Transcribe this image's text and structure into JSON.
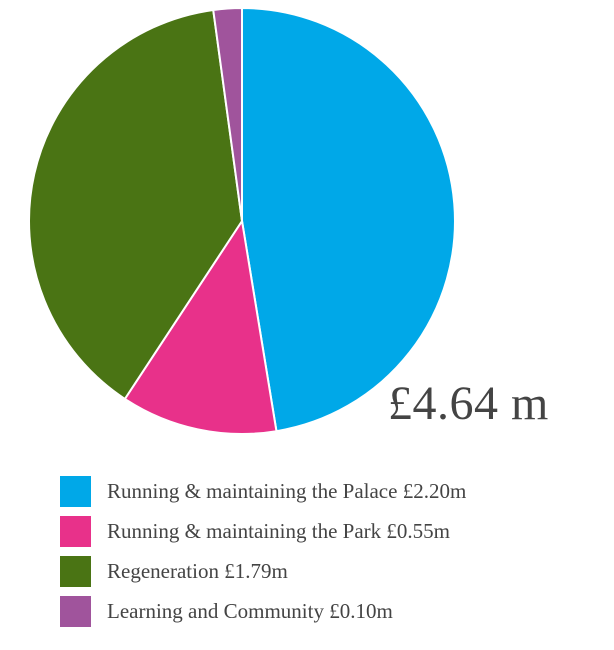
{
  "chart_data": {
    "type": "pie",
    "total_label": "£4.64 m",
    "slices": [
      {
        "label": "Running & maintaining the Palace",
        "value": 2.2,
        "value_label": "£2.20m",
        "color": "#00A8E8"
      },
      {
        "label": "Running & maintaining the Park",
        "value": 0.55,
        "value_label": "£0.55m",
        "color": "#E8318A"
      },
      {
        "label": "Regeneration",
        "value": 1.79,
        "value_label": "£1.79m",
        "color": "#4A7414"
      },
      {
        "label": "Learning and Community",
        "value": 0.1,
        "value_label": "£0.10m",
        "color": "#A0549C"
      }
    ]
  }
}
